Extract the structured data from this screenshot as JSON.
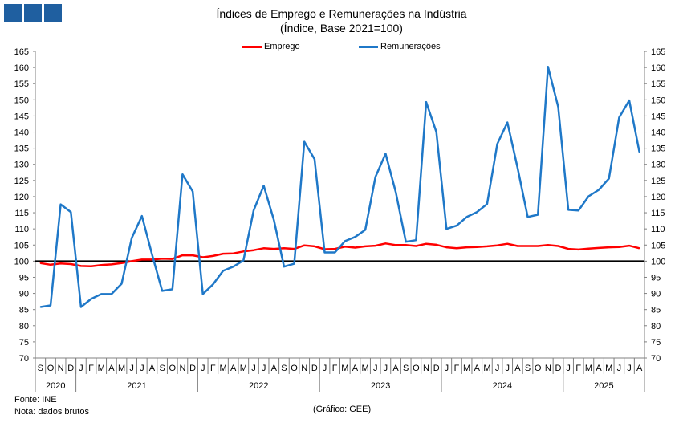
{
  "header": {
    "title": "Índices de Emprego e Remunerações na Indústria",
    "subtitle": "(Índice, Base 2021=100)",
    "logo": "GEE logo"
  },
  "footer": {
    "source": "Fonte: INE",
    "note": "Nota: dados brutos",
    "credit": "(Gráfico: GEE)"
  },
  "chart_data": {
    "type": "line",
    "title": "Índices de Emprego e Remunerações na Indústria",
    "subtitle": "(Índice, Base 2021=100)",
    "ylim": [
      70,
      165
    ],
    "ystep": 5,
    "legend_position": "top-center",
    "reference_line": 100,
    "months": [
      "S",
      "O",
      "N",
      "D",
      "J",
      "F",
      "M",
      "A",
      "M",
      "J",
      "J",
      "A",
      "S",
      "O",
      "N",
      "D",
      "J",
      "F",
      "M",
      "A",
      "M",
      "J",
      "J",
      "A",
      "S",
      "O",
      "N",
      "D",
      "J",
      "F",
      "M",
      "A",
      "M",
      "J",
      "J",
      "A",
      "S",
      "O",
      "N",
      "D",
      "J",
      "F",
      "M",
      "A",
      "M",
      "J",
      "J",
      "A",
      "S",
      "O",
      "N",
      "D",
      "J",
      "F",
      "M",
      "A",
      "M",
      "J",
      "J",
      "A"
    ],
    "years": [
      {
        "label": "2020",
        "count": 4
      },
      {
        "label": "2021",
        "count": 12
      },
      {
        "label": "2022",
        "count": 12
      },
      {
        "label": "2023",
        "count": 12
      },
      {
        "label": "2024",
        "count": 12
      },
      {
        "label": "2025",
        "count": 8
      }
    ],
    "series": [
      {
        "name": "Emprego",
        "color": "#ff0000",
        "values": [
          99.4,
          98.9,
          99.3,
          99.1,
          98.5,
          98.4,
          98.8,
          99.0,
          99.4,
          100.0,
          100.5,
          100.5,
          100.8,
          100.7,
          101.8,
          101.8,
          101.2,
          101.6,
          102.3,
          102.4,
          103.0,
          103.4,
          104.0,
          103.8,
          104.0,
          103.8,
          104.9,
          104.6,
          103.7,
          103.8,
          104.5,
          104.2,
          104.6,
          104.8,
          105.5,
          105.0,
          105.0,
          104.7,
          105.4,
          105.1,
          104.3,
          104.0,
          104.3,
          104.4,
          104.6,
          104.9,
          105.4,
          104.7,
          104.7,
          104.7,
          105.0,
          104.7,
          103.8,
          103.6,
          103.9,
          104.1,
          104.3,
          104.4,
          104.8,
          104.0
        ]
      },
      {
        "name": "Remunerações",
        "color": "#1f78c8",
        "values": [
          85.8,
          86.3,
          117.6,
          115.2,
          85.8,
          88.3,
          89.8,
          89.8,
          93.0,
          107.2,
          114.0,
          102.0,
          90.8,
          91.3,
          126.9,
          121.6,
          89.8,
          92.8,
          97.0,
          98.3,
          100.2,
          115.7,
          123.4,
          112.7,
          98.3,
          99.2,
          137.0,
          131.6,
          102.7,
          102.7,
          106.2,
          107.5,
          109.7,
          126.1,
          133.3,
          121.4,
          106.0,
          106.5,
          149.3,
          140.0,
          110.0,
          111.0,
          113.7,
          115.2,
          117.7,
          136.3,
          143.0,
          128.9,
          113.7,
          114.4,
          160.2,
          147.8,
          115.9,
          115.7,
          120.1,
          122.1,
          125.6,
          144.5,
          149.8,
          133.8
        ]
      }
    ]
  }
}
